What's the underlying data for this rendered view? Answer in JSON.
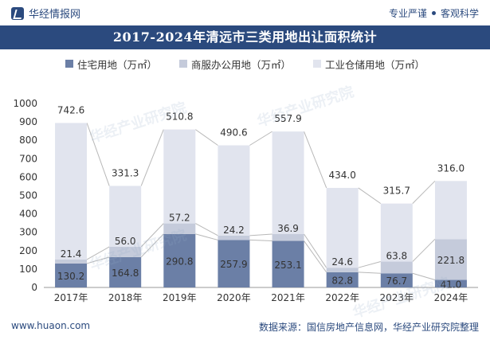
{
  "header": {
    "brand": "华经情报网",
    "tagline_left": "专业严谨",
    "tagline_right": "客观科学"
  },
  "watermark": "华经产业研究院",
  "colors": {
    "residential": "#6b7fa6",
    "commercial": "#c5cbdb",
    "industrial": "#e1e4ee",
    "title_bg": "#2b4a7e",
    "connector": "#b8b8b8"
  },
  "chart_data": {
    "type": "bar",
    "stacked": true,
    "title": "2017-2024年清远市三类用地出让面积统计",
    "categories": [
      "2017年",
      "2018年",
      "2019年",
      "2020年",
      "2021年",
      "2022年",
      "2023年",
      "2024年"
    ],
    "series": [
      {
        "name": "住宅用地（万㎡）",
        "values": [
          130.2,
          164.8,
          290.8,
          257.9,
          253.1,
          82.8,
          76.7,
          41.0
        ]
      },
      {
        "name": "商服办公用地（万㎡）",
        "values": [
          21.4,
          56.0,
          57.2,
          24.2,
          36.9,
          24.6,
          63.8,
          221.8
        ]
      },
      {
        "name": "工业仓储用地（万㎡）",
        "values": [
          742.6,
          331.3,
          510.8,
          490.6,
          557.9,
          434.0,
          315.7,
          316.0
        ]
      }
    ],
    "ylim": [
      0,
      1000
    ],
    "yticks": [
      0,
      100,
      200,
      300,
      400,
      500,
      600,
      700,
      800,
      900,
      1000
    ],
    "legend_position": "top",
    "grid": false
  },
  "footer": {
    "site": "www.huaon.com",
    "source": "数据来源：国信房地产信息网，华经产业研究院整理"
  }
}
